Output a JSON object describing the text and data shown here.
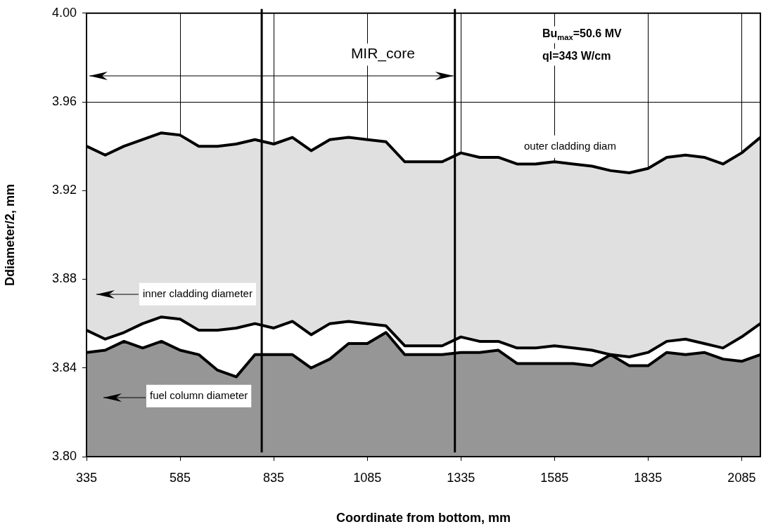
{
  "chart_data": {
    "type": "area",
    "xlabel": "Coordinate from bottom, mm",
    "ylabel": "Ddiameter/2, mm",
    "x": [
      335,
      385,
      435,
      485,
      535,
      585,
      635,
      685,
      735,
      785,
      835,
      885,
      935,
      985,
      1035,
      1085,
      1135,
      1185,
      1235,
      1285,
      1335,
      1385,
      1435,
      1485,
      1535,
      1585,
      1635,
      1685,
      1735,
      1785,
      1835,
      1885,
      1935,
      1985,
      2035,
      2085,
      2135
    ],
    "series": [
      {
        "name": "outer cladding diam",
        "color": "#e0e0e0",
        "values": [
          3.94,
          3.936,
          3.94,
          3.943,
          3.946,
          3.945,
          3.94,
          3.94,
          3.941,
          3.943,
          3.941,
          3.944,
          3.938,
          3.943,
          3.944,
          3.943,
          3.942,
          3.933,
          3.933,
          3.933,
          3.937,
          3.935,
          3.935,
          3.932,
          3.932,
          3.933,
          3.932,
          3.931,
          3.929,
          3.928,
          3.93,
          3.935,
          3.936,
          3.935,
          3.932,
          3.937,
          3.944
        ]
      },
      {
        "name": "inner cladding diameter",
        "color": "#ffffff",
        "values": [
          3.857,
          3.853,
          3.856,
          3.86,
          3.863,
          3.862,
          3.857,
          3.857,
          3.858,
          3.86,
          3.858,
          3.861,
          3.855,
          3.86,
          3.861,
          3.86,
          3.859,
          3.85,
          3.85,
          3.85,
          3.854,
          3.852,
          3.852,
          3.849,
          3.849,
          3.85,
          3.849,
          3.848,
          3.846,
          3.845,
          3.847,
          3.852,
          3.853,
          3.851,
          3.849,
          3.854,
          3.86
        ]
      },
      {
        "name": "fuel column diameter",
        "color": "#969696",
        "values": [
          3.847,
          3.848,
          3.852,
          3.849,
          3.852,
          3.848,
          3.846,
          3.839,
          3.836,
          3.846,
          3.846,
          3.846,
          3.84,
          3.844,
          3.851,
          3.851,
          3.856,
          3.846,
          3.846,
          3.846,
          3.847,
          3.847,
          3.848,
          3.842,
          3.842,
          3.842,
          3.842,
          3.841,
          3.846,
          3.841,
          3.841,
          3.847,
          3.846,
          3.847,
          3.844,
          3.843,
          3.846
        ]
      }
    ],
    "xlim": [
      335,
      2135
    ],
    "xticks": [
      335,
      585,
      835,
      1085,
      1335,
      1585,
      1835,
      2085
    ],
    "ylim": [
      3.8,
      4.0
    ],
    "yticks": [
      {
        "value": 3.8,
        "label": "3.80"
      },
      {
        "value": 3.84,
        "label": "3.84"
      },
      {
        "value": 3.88,
        "label": "3.88"
      },
      {
        "value": 3.92,
        "label": "3.92"
      },
      {
        "value": 3.96,
        "label": "3.96"
      },
      {
        "value": 4.0,
        "label": "4.00"
      }
    ],
    "ref_lines": [
      {
        "axis": "x",
        "value": 803,
        "color": "#000000"
      },
      {
        "axis": "x",
        "value": 1319,
        "color": "#000000"
      }
    ],
    "annotations": [
      "MIR_core",
      "Bu$_{max}$=50.6 MV",
      "ql=343 W/cm"
    ],
    "grid": true,
    "legend": "left",
    "marker": "none",
    "line_style": "solid"
  }
}
